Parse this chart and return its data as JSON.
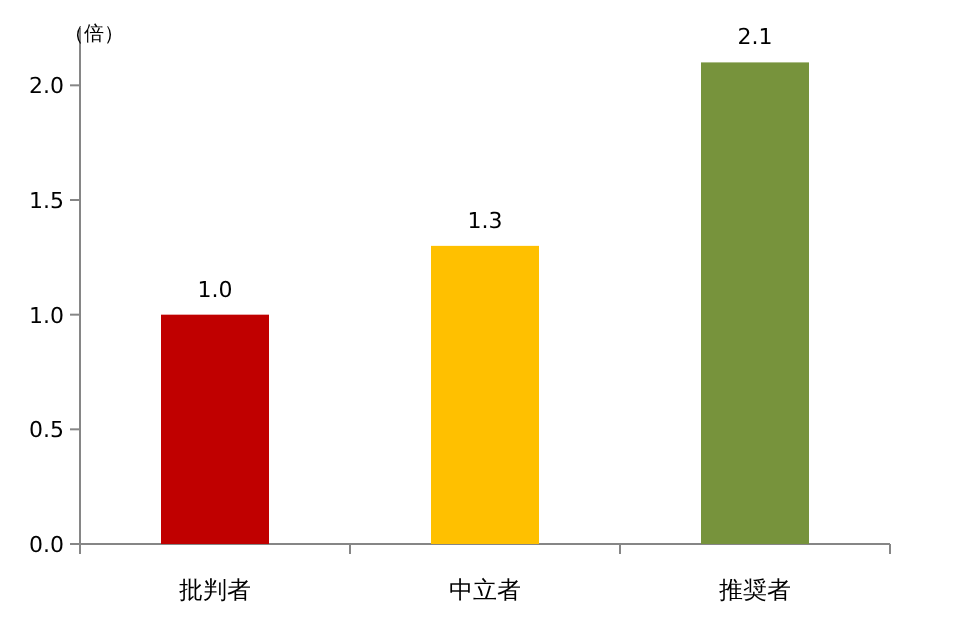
{
  "chart_data": {
    "type": "bar",
    "ylabel": "（倍）",
    "categories": [
      "批判者",
      "中立者",
      "推奨者"
    ],
    "values": [
      1.0,
      1.3,
      2.1
    ],
    "value_labels": [
      "1.0",
      "1.3",
      "2.1"
    ],
    "colors": [
      "#c00000",
      "#ffc000",
      "#77933c"
    ],
    "ylim": [
      0,
      2.25
    ],
    "yticks": [
      {
        "value": 0,
        "label": "0.0"
      },
      0.5,
      {
        "value": 1,
        "label": "1.0"
      },
      1.5,
      {
        "value": 2,
        "label": "2.0"
      }
    ]
  }
}
